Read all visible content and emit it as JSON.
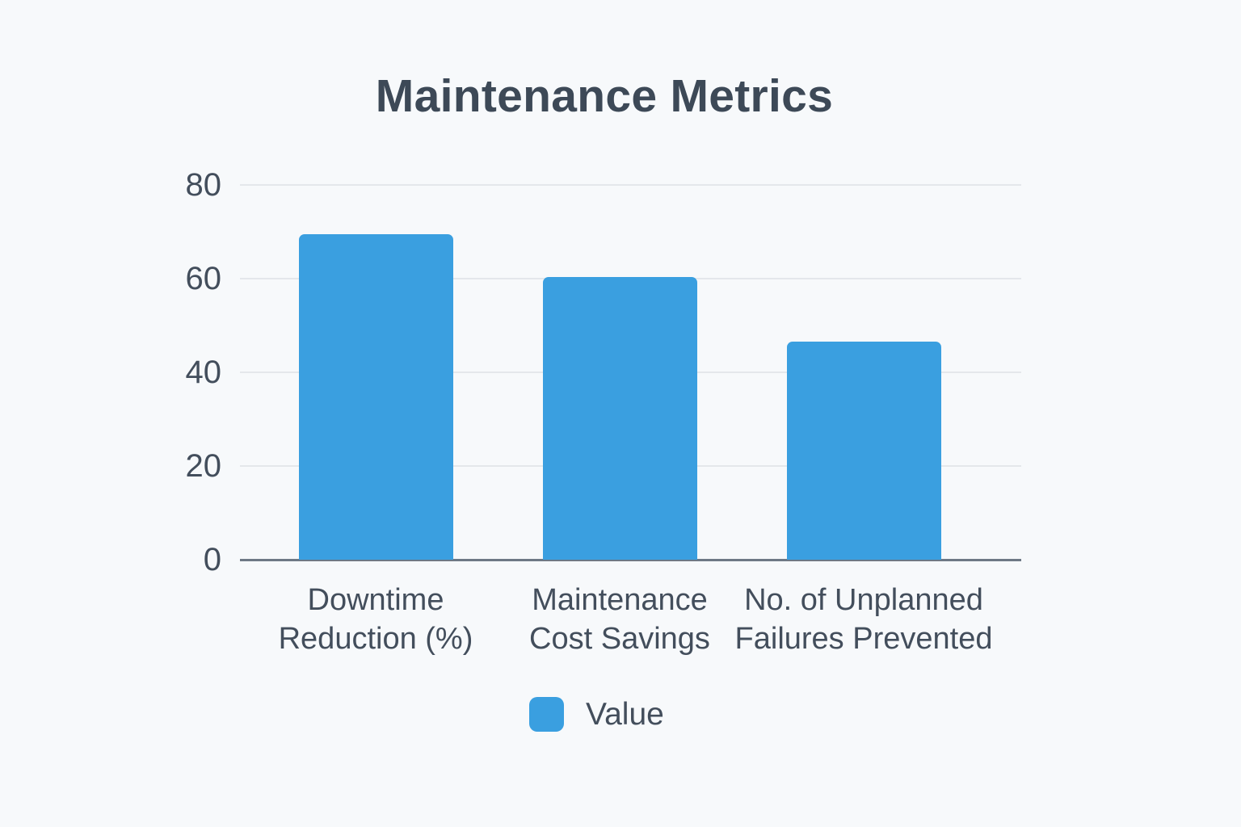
{
  "chart_data": {
    "type": "bar",
    "title": "Maintenance Metrics",
    "categories": [
      "Downtime Reduction (%)",
      "Maintenance Cost Savings",
      "No. of Unplanned Failures Prevented"
    ],
    "category_label_lines": [
      [
        "Downtime",
        "Reduction (%)"
      ],
      [
        "Maintenance",
        "Cost Savings"
      ],
      [
        "No. of Unplanned",
        "Failures Prevented"
      ]
    ],
    "series": [
      {
        "name": "Value",
        "values": [
          69.5,
          60.3,
          46.5
        ]
      }
    ],
    "xlabel": "",
    "ylabel": "",
    "ylim": [
      0,
      80
    ],
    "yticks": [
      0,
      20,
      40,
      60,
      80
    ],
    "grid": true,
    "legend": {
      "position": "bottom",
      "entries": [
        "Value"
      ]
    },
    "colors": {
      "bar": "#3a9fe0",
      "title_text": "#3d4957",
      "axis_text": "#434e5c",
      "gridline": "#e4e7eb",
      "axis_line": "#6e7985",
      "background": "#f7f9fb"
    }
  }
}
